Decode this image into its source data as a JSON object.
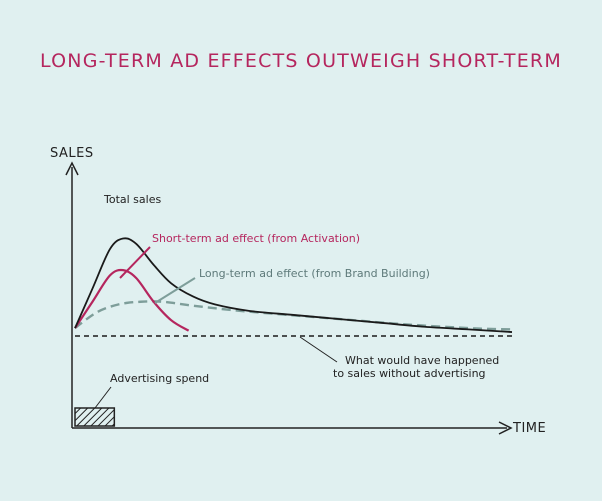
{
  "chart_data": {
    "type": "line",
    "title": "LONG-TERM AD EFFECTS OUTWEIGH SHORT-TERM",
    "xlabel": "TIME",
    "ylabel": "SALES",
    "xlim": [
      0,
      100
    ],
    "ylim": [
      0,
      100
    ],
    "grid": false,
    "series": [
      {
        "name": "Total sales",
        "color": "#1a1a1a",
        "style": "solid",
        "x": [
          0,
          4,
          8,
          11,
          14,
          18,
          22,
          27,
          32,
          40,
          50,
          60,
          70,
          80,
          90,
          100
        ],
        "y": [
          3,
          18,
          33,
          37,
          35,
          27,
          20,
          15,
          12,
          9.5,
          8,
          6.5,
          5,
          3.5,
          2.5,
          1.5
        ]
      },
      {
        "name": "Short-term ad effect (from Activation)",
        "color": "#b5265e",
        "style": "solid",
        "x": [
          0,
          4,
          8,
          11,
          14,
          18,
          22,
          26
        ],
        "y": [
          3,
          13,
          23,
          25,
          22,
          13,
          6,
          2
        ]
      },
      {
        "name": "Long-term ad effect (from Brand Building)",
        "color": "#7e9e9a",
        "style": "dashed",
        "x": [
          0,
          5,
          10,
          15,
          20,
          27,
          35,
          45,
          60,
          75,
          90,
          100
        ],
        "y": [
          3,
          9,
          12,
          13,
          13,
          11.5,
          10,
          8.5,
          6.5,
          4.5,
          3,
          2.5
        ]
      },
      {
        "name": "What would have happened to sales without advertising",
        "color": "#1a1a1a",
        "style": "dashed",
        "x": [
          0,
          100
        ],
        "y": [
          0,
          0
        ]
      }
    ],
    "annotations": {
      "total_sales": "Total sales",
      "short_term": "Short-term ad effect (from Activation)",
      "long_term": "Long-term ad effect (from Brand Building)",
      "baseline_line1": "What would have happened",
      "baseline_line2": "to sales without advertising",
      "ad_spend": "Advertising spend"
    },
    "ad_spend_period": [
      0,
      9
    ]
  }
}
